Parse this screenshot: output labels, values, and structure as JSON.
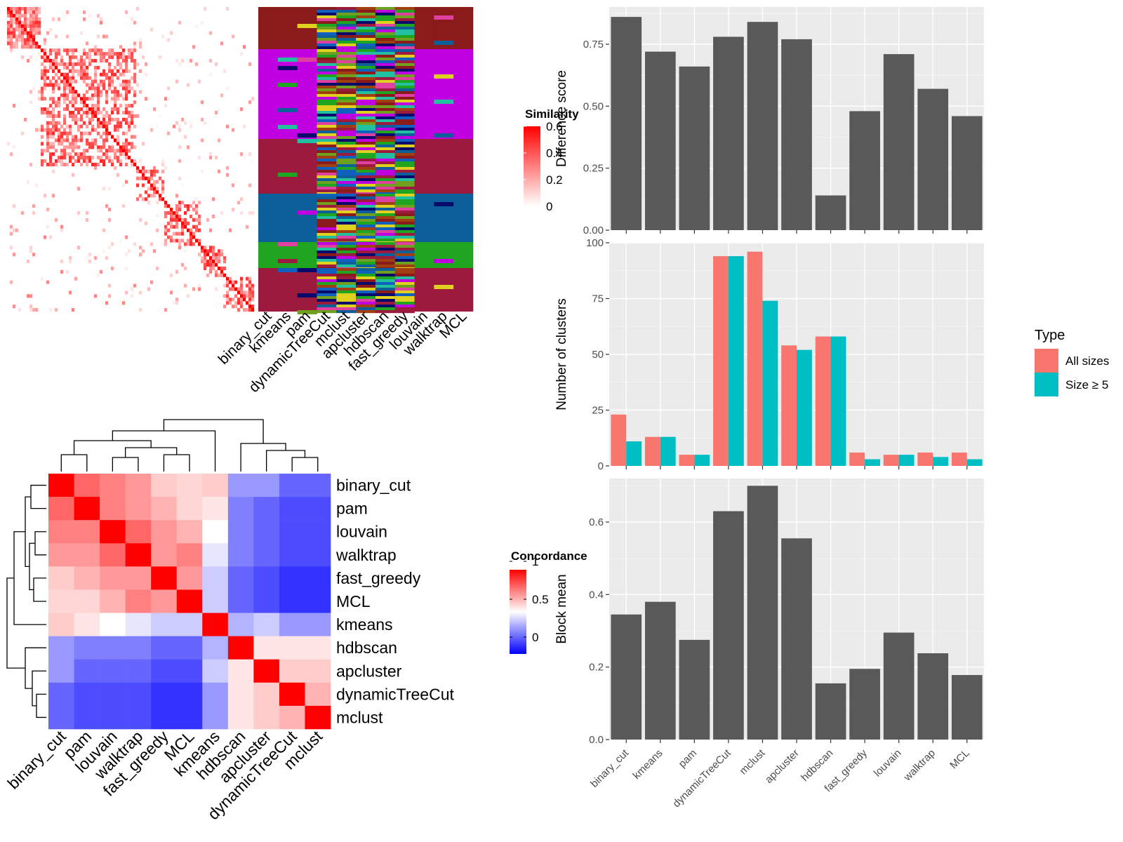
{
  "chart_data": [
    {
      "type": "heatmap",
      "panel": "similarity-heatmap-with-cluster-annotations",
      "column_labels": [
        "binary_cut",
        "kmeans",
        "pam",
        "dynamicTreeCut",
        "mclust",
        "apcluster",
        "hdbscan",
        "fast_greedy",
        "louvain",
        "walktrap",
        "MCL"
      ],
      "legend": {
        "title": "Similarity",
        "ticks": [
          "0.6",
          "0.4",
          "0.2",
          "0"
        ],
        "colors": [
          "#ffffff",
          "#ff0000"
        ]
      }
    },
    {
      "type": "heatmap",
      "panel": "concordance-heatmap",
      "row_labels": [
        "binary_cut",
        "pam",
        "louvain",
        "walktrap",
        "fast_greedy",
        "MCL",
        "kmeans",
        "hdbscan",
        "apcluster",
        "dynamicTreeCut",
        "mclust"
      ],
      "column_labels": [
        "binary_cut",
        "pam",
        "louvain",
        "walktrap",
        "fast_greedy",
        "MCL",
        "kmeans",
        "hdbscan",
        "apcluster",
        "dynamicTreeCut",
        "mclust"
      ],
      "values": [
        [
          1.0,
          0.8,
          0.75,
          0.7,
          0.6,
          0.58,
          0.6,
          0.3,
          0.3,
          0.2,
          0.2
        ],
        [
          0.8,
          1.0,
          0.75,
          0.7,
          0.65,
          0.58,
          0.55,
          0.25,
          0.2,
          0.15,
          0.15
        ],
        [
          0.75,
          0.75,
          1.0,
          0.8,
          0.7,
          0.65,
          0.5,
          0.25,
          0.2,
          0.15,
          0.15
        ],
        [
          0.7,
          0.7,
          0.8,
          1.0,
          0.7,
          0.75,
          0.45,
          0.25,
          0.2,
          0.15,
          0.15
        ],
        [
          0.6,
          0.65,
          0.7,
          0.7,
          1.0,
          0.7,
          0.4,
          0.2,
          0.15,
          0.1,
          0.1
        ],
        [
          0.58,
          0.58,
          0.65,
          0.75,
          0.7,
          1.0,
          0.4,
          0.2,
          0.15,
          0.1,
          0.1
        ],
        [
          0.6,
          0.55,
          0.5,
          0.45,
          0.4,
          0.4,
          1.0,
          0.35,
          0.4,
          0.3,
          0.3
        ],
        [
          0.3,
          0.25,
          0.25,
          0.25,
          0.2,
          0.2,
          0.35,
          1.0,
          0.55,
          0.55,
          0.55
        ],
        [
          0.3,
          0.2,
          0.2,
          0.2,
          0.15,
          0.15,
          0.4,
          0.55,
          1.0,
          0.6,
          0.6
        ],
        [
          0.2,
          0.15,
          0.15,
          0.15,
          0.1,
          0.1,
          0.3,
          0.55,
          0.6,
          1.0,
          0.65
        ],
        [
          0.2,
          0.15,
          0.15,
          0.15,
          0.1,
          0.1,
          0.3,
          0.55,
          0.6,
          0.65,
          1.0
        ]
      ],
      "legend": {
        "title": "Concordance",
        "ticks": [
          "1",
          "0.5",
          "0"
        ],
        "colors": [
          "#0000ff",
          "#ffffff",
          "#ff0000"
        ]
      }
    },
    {
      "type": "bar",
      "panel": "difference-score",
      "categories": [
        "binary_cut",
        "kmeans",
        "pam",
        "dynamicTreeCut",
        "mclust",
        "apcluster",
        "hdbscan",
        "fast_greedy",
        "louvain",
        "walktrap",
        "MCL"
      ],
      "values": [
        0.86,
        0.72,
        0.66,
        0.78,
        0.84,
        0.77,
        0.14,
        0.48,
        0.71,
        0.57,
        0.46
      ],
      "ylabel": "Difference score",
      "yticks": [
        0.0,
        0.25,
        0.5,
        0.75
      ],
      "ytick_labels": [
        "0.00",
        "0.25",
        "0.50",
        "0.75"
      ],
      "ylim": [
        0,
        0.9
      ],
      "color": "#595959"
    },
    {
      "type": "bar",
      "panel": "number-of-clusters",
      "categories": [
        "binary_cut",
        "kmeans",
        "pam",
        "dynamicTreeCut",
        "mclust",
        "apcluster",
        "hdbscan",
        "fast_greedy",
        "louvain",
        "walktrap",
        "MCL"
      ],
      "series": [
        {
          "name": "All sizes",
          "values": [
            23,
            13,
            5,
            94,
            96,
            54,
            58,
            6,
            5,
            6,
            6
          ],
          "color": "#F8766D"
        },
        {
          "name": "Size ≥ 5",
          "values": [
            11,
            13,
            5,
            94,
            74,
            52,
            58,
            3,
            5,
            4,
            3
          ],
          "color": "#00BFC4"
        }
      ],
      "ylabel": "Number of clusters",
      "yticks": [
        0,
        25,
        50,
        75,
        100
      ],
      "ytick_labels": [
        "0",
        "25",
        "50",
        "75",
        "100"
      ],
      "ylim": [
        0,
        100
      ],
      "legend": {
        "title": "Type",
        "placement": "right"
      }
    },
    {
      "type": "bar",
      "panel": "block-mean",
      "categories": [
        "binary_cut",
        "kmeans",
        "pam",
        "dynamicTreeCut",
        "mclust",
        "apcluster",
        "hdbscan",
        "fast_greedy",
        "louvain",
        "walktrap",
        "MCL"
      ],
      "values": [
        0.345,
        0.38,
        0.275,
        0.63,
        0.7,
        0.555,
        0.155,
        0.195,
        0.295,
        0.238,
        0.178
      ],
      "ylabel": "Block mean",
      "yticks": [
        0.0,
        0.2,
        0.4,
        0.6
      ],
      "ytick_labels": [
        "0.0",
        "0.2",
        "0.4",
        "0.6"
      ],
      "ylim": [
        0,
        0.72
      ],
      "color": "#595959"
    }
  ]
}
